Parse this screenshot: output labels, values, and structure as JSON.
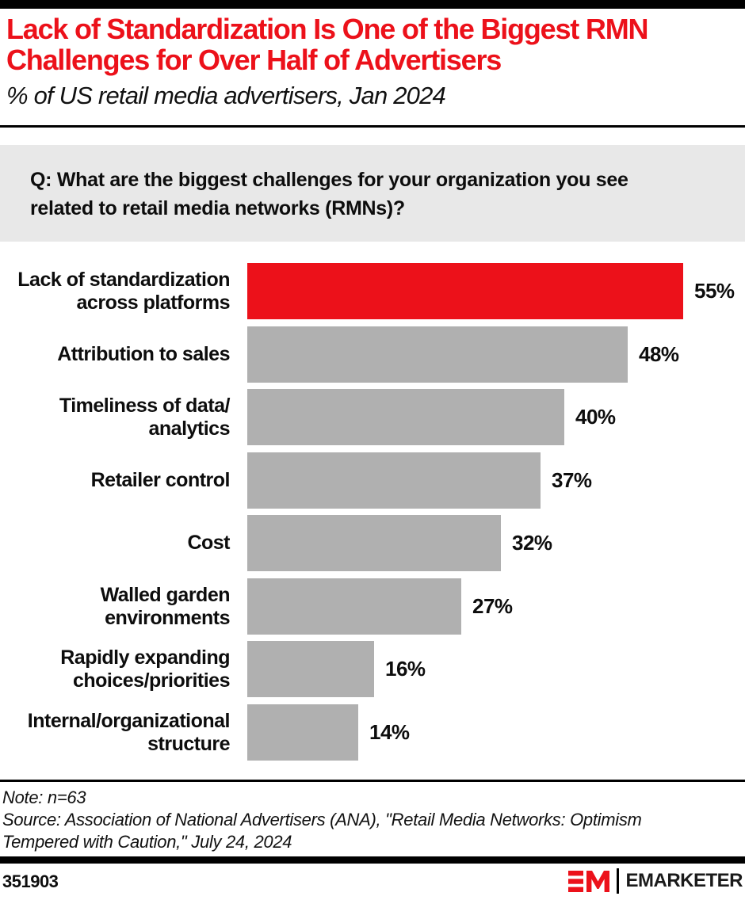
{
  "header": {
    "title": "Lack of Standardization Is One of the Biggest RMN\nChallenges for Over Half of Advertisers",
    "subtitle": "% of US retail media advertisers, Jan 2024"
  },
  "question": "Q: What are the biggest challenges for your organization you see\nrelated to retail media networks (RMNs)?",
  "chart_data": {
    "type": "bar",
    "orientation": "horizontal",
    "unit": "%",
    "categories": [
      "Lack of standardization\nacross platforms",
      "Attribution to sales",
      "Timeliness of data/\nanalytics",
      "Retailer control",
      "Cost",
      "Walled garden\nenvironments",
      "Rapidly expanding\nchoices/priorities",
      "Internal/organizational\nstructure"
    ],
    "values": [
      55,
      48,
      40,
      37,
      32,
      27,
      16,
      14
    ],
    "value_labels": [
      "55%",
      "48%",
      "40%",
      "37%",
      "32%",
      "27%",
      "16%",
      "14%"
    ],
    "xlim": [
      0,
      100
    ],
    "grid": false,
    "legend": "none",
    "highlight_index": 0,
    "highlight_color": "#ec111a",
    "bar_color": "#b0b0b0"
  },
  "footer": {
    "note": "Note: n=63",
    "source": "Source: Association of National Advertisers (ANA), \"Retail Media Networks: Optimism\nTempered with Caution,\" July 24, 2024",
    "chart_id": "351903",
    "brand_name": "EMARKETER",
    "logo_monogram": "EM"
  },
  "colors": {
    "accent_red": "#ec111a",
    "bar_gray": "#b0b0b0",
    "question_box_bg": "#e8e8e8",
    "rule_black": "#000000"
  }
}
